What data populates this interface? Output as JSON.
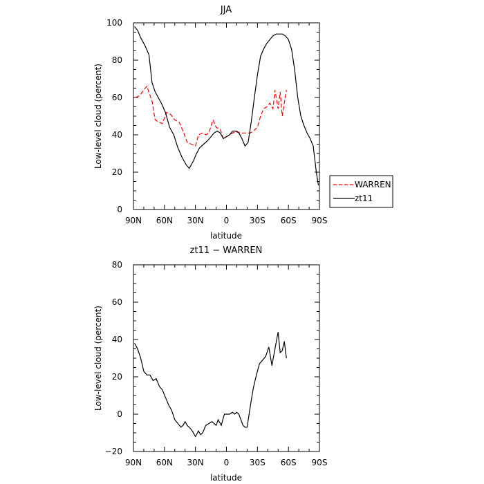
{
  "chart_data": [
    {
      "type": "line",
      "title": "JJA",
      "xlabel": "latitude",
      "ylabel": "Low-level cloud (percent)",
      "xlim": [
        90,
        -90
      ],
      "ylim": [
        0,
        100
      ],
      "x_ticks": [
        90,
        60,
        30,
        0,
        -30,
        -60,
        -90
      ],
      "x_tick_labels": [
        "90N",
        "60N",
        "30N",
        "0",
        "30S",
        "60S",
        "90S"
      ],
      "y_ticks": [
        0,
        20,
        40,
        60,
        80,
        100
      ],
      "y_tick_labels": [
        "0",
        "20",
        "40",
        "60",
        "80",
        "100"
      ],
      "legend_position": "right, outside plot",
      "series": [
        {
          "name": "WARREN",
          "color": "#ff0000",
          "style": "dashed",
          "x": [
            88,
            84,
            80,
            77,
            72,
            69,
            66,
            62,
            58,
            54,
            50,
            46,
            42,
            38,
            34,
            30,
            27,
            23,
            20,
            17,
            13,
            10,
            6,
            3,
            0,
            -3,
            -6,
            -10,
            -13,
            -16,
            -20,
            -23,
            -26,
            -30,
            -33,
            -36,
            -39,
            -42,
            -45,
            -47,
            -50,
            -52,
            -54,
            -56,
            -58
          ],
          "values": [
            60,
            61,
            64,
            66,
            58,
            48,
            47,
            46,
            52,
            51,
            48,
            47,
            42,
            36,
            35,
            34,
            40,
            41,
            40,
            41,
            48,
            44,
            43,
            38,
            39,
            40,
            41,
            42,
            41,
            41,
            41,
            41,
            42,
            44,
            50,
            54,
            55,
            57,
            54,
            64,
            54,
            63,
            50,
            57,
            64
          ]
        },
        {
          "name": "zt11",
          "color": "#000000",
          "style": "solid",
          "x": [
            89,
            86,
            83,
            79,
            75,
            72,
            69,
            66,
            63,
            59,
            55,
            51,
            47,
            43,
            39,
            36,
            32,
            29,
            26,
            22,
            18,
            15,
            12,
            9,
            6,
            3,
            0,
            -3,
            -6,
            -9,
            -12,
            -15,
            -18,
            -21,
            -24,
            -27,
            -30,
            -33,
            -36,
            -39,
            -42,
            -45,
            -48,
            -51,
            -54,
            -57,
            -60,
            -63,
            -66,
            -69,
            -72,
            -75,
            -78,
            -81,
            -84,
            -87,
            -89
          ],
          "values": [
            98,
            96,
            92,
            88,
            83,
            68,
            63,
            60,
            57,
            52,
            44,
            40,
            33,
            28,
            24,
            22,
            26,
            30,
            33,
            35,
            37,
            39,
            41,
            42,
            41,
            38,
            39,
            40,
            42,
            42,
            41,
            38,
            34,
            36,
            47,
            60,
            72,
            82,
            86,
            89,
            91,
            93,
            94,
            94,
            94,
            93,
            91,
            86,
            75,
            60,
            50,
            45,
            41,
            38,
            34,
            20,
            13
          ]
        }
      ]
    },
    {
      "type": "line",
      "title": "zt11 − WARREN",
      "xlabel": "latitude",
      "ylabel": "Low-level cloud (percent)",
      "xlim": [
        90,
        -90
      ],
      "ylim": [
        -20,
        80
      ],
      "x_ticks": [
        90,
        60,
        30,
        0,
        -30,
        -60,
        -90
      ],
      "x_tick_labels": [
        "90N",
        "60N",
        "30N",
        "0",
        "30S",
        "60S",
        "90S"
      ],
      "y_ticks": [
        -20,
        0,
        20,
        40,
        60,
        80
      ],
      "y_tick_labels": [
        "−20",
        "0",
        "20",
        "40",
        "60",
        "80"
      ],
      "series": [
        {
          "color": "#000000",
          "style": "solid",
          "x": [
            89,
            86,
            83,
            80,
            77,
            74,
            71,
            68,
            65,
            62,
            59,
            56,
            53,
            50,
            47,
            44,
            42,
            40,
            38,
            36,
            33,
            30,
            27,
            25,
            23,
            20,
            17,
            14,
            12,
            10,
            8,
            5,
            2,
            0,
            -3,
            -6,
            -8,
            -10,
            -12,
            -14,
            -16,
            -18,
            -20,
            -23,
            -26,
            -29,
            -32,
            -35,
            -38,
            -41,
            -44,
            -47,
            -50,
            -52,
            -54,
            -56,
            -58
          ],
          "values": [
            38,
            35,
            30,
            23,
            21,
            21,
            18,
            19,
            15,
            13,
            9,
            5,
            2,
            -3,
            -5,
            -7,
            -6,
            -4,
            -6,
            -7,
            -9,
            -12,
            -9,
            -11,
            -10,
            -6,
            -5,
            -4,
            -5,
            -6,
            -3,
            -6,
            0,
            0,
            0,
            1,
            0,
            1,
            0,
            -3,
            -6,
            -7,
            -7,
            4,
            14,
            21,
            27,
            29,
            31,
            36,
            26,
            35,
            44,
            33,
            34,
            39,
            30
          ]
        }
      ]
    }
  ]
}
